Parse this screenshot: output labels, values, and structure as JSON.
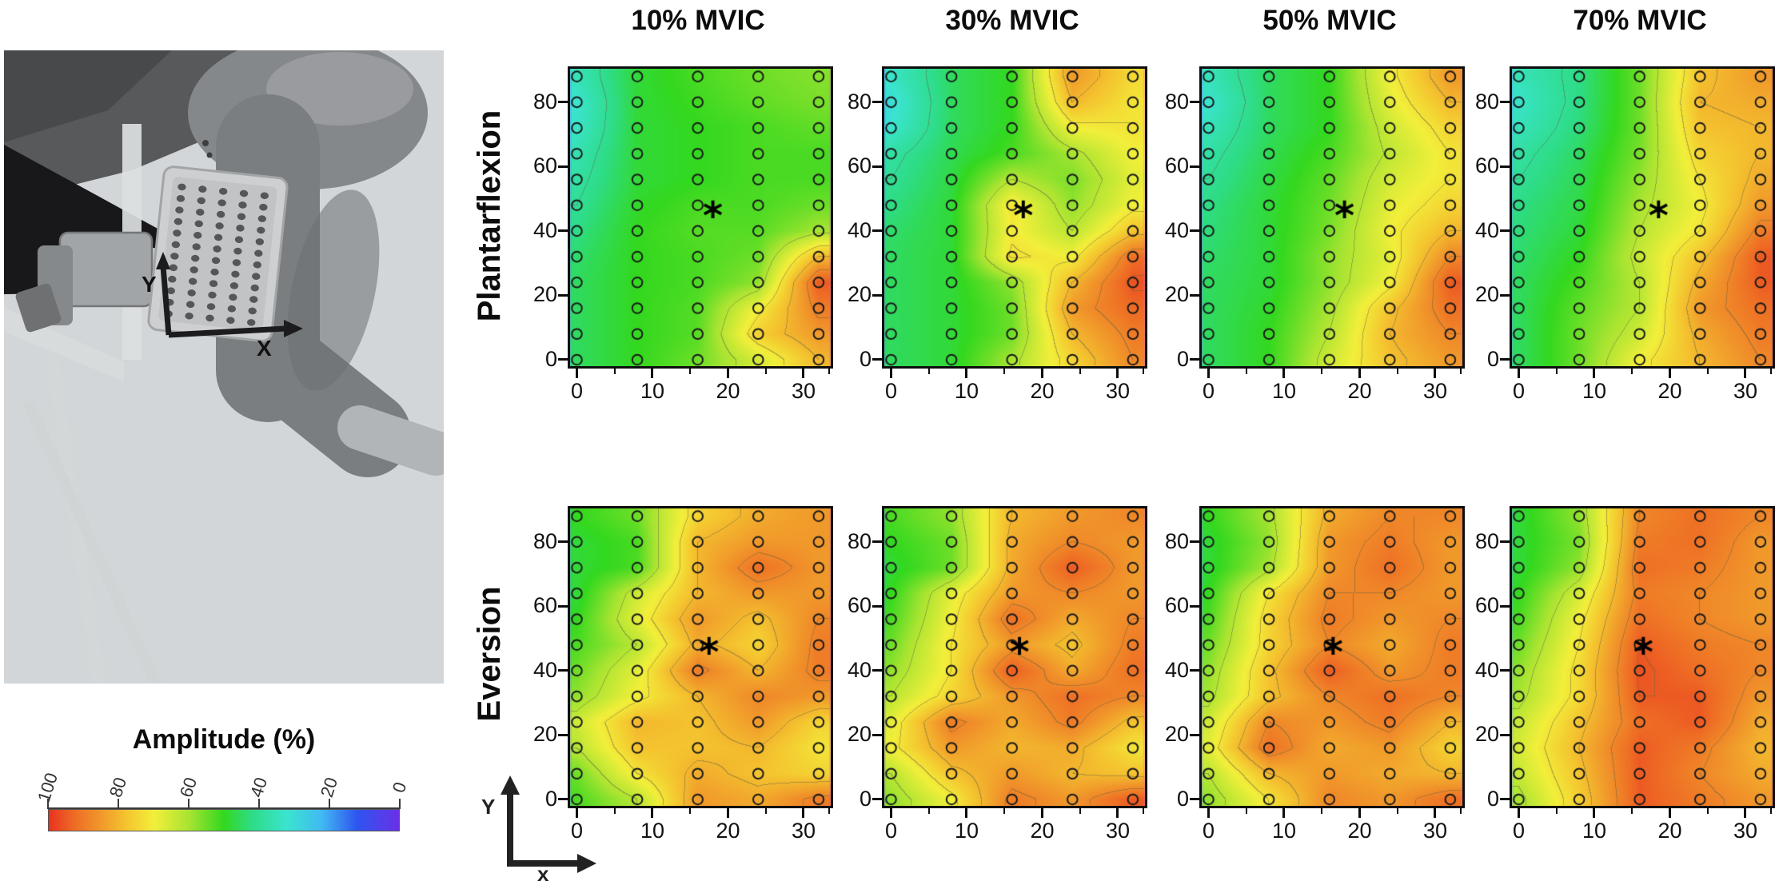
{
  "columns": [
    "10% MVIC",
    "30% MVIC",
    "50% MVIC",
    "70% MVIC"
  ],
  "rows": [
    "Plantarflexion",
    "Eversion"
  ],
  "photo": {
    "axis_y_label": "Y",
    "axis_x_label": "X"
  },
  "axis_icon": {
    "y_label": "Y",
    "x_label": "x"
  },
  "colorbar": {
    "title": "Amplitude (%)",
    "tick_labels": [
      "100",
      "80",
      "60",
      "40",
      "20",
      "0"
    ],
    "stops": [
      {
        "value": 0,
        "color": "#6a30e6"
      },
      {
        "value": 12,
        "color": "#2e55f0"
      },
      {
        "value": 22,
        "color": "#41b9f2"
      },
      {
        "value": 32,
        "color": "#3ae4cf"
      },
      {
        "value": 42,
        "color": "#2edc86"
      },
      {
        "value": 50,
        "color": "#33d81f"
      },
      {
        "value": 60,
        "color": "#a8e431"
      },
      {
        "value": 70,
        "color": "#f2ef3a"
      },
      {
        "value": 78,
        "color": "#f4c32f"
      },
      {
        "value": 86,
        "color": "#f0932a"
      },
      {
        "value": 93,
        "color": "#ee6a24"
      },
      {
        "value": 100,
        "color": "#e8321f"
      }
    ]
  },
  "chart_axes": {
    "xlim": [
      -0.9,
      33.6
    ],
    "ylim": [
      -2,
      90.4
    ],
    "xticks": [
      "0",
      "10",
      "20",
      "30"
    ],
    "xtick_values": [
      0,
      10,
      20,
      30
    ],
    "xminor_values": [
      5,
      15,
      25,
      33.4
    ],
    "yticks": [
      "0",
      "20",
      "40",
      "60",
      "80"
    ],
    "ytick_values": [
      0,
      20,
      40,
      60,
      80
    ],
    "grid_x": [
      0,
      8,
      16,
      24,
      32
    ],
    "grid_y": [
      88,
      80,
      72,
      64,
      56,
      48,
      40,
      32,
      24,
      16,
      8,
      0
    ],
    "contour_levels": [
      40,
      62,
      72,
      80,
      88,
      95
    ]
  },
  "chart_data": [
    {
      "type": "heatmap",
      "task": "Plantarflexion",
      "mvic": "10% MVIC",
      "marker": "*",
      "star": {
        "x": 18,
        "y": 45
      },
      "values": [
        [
          35,
          48,
          52,
          55,
          57
        ],
        [
          32,
          48,
          51,
          54,
          56
        ],
        [
          33,
          48,
          50,
          52,
          54
        ],
        [
          36,
          48,
          50,
          52,
          52
        ],
        [
          38,
          48,
          50,
          52,
          52
        ],
        [
          40,
          49,
          52,
          52,
          55
        ],
        [
          42,
          50,
          53,
          53,
          60
        ],
        [
          44,
          50,
          52,
          55,
          80
        ],
        [
          45,
          50,
          52,
          58,
          95
        ],
        [
          45,
          50,
          53,
          70,
          90
        ],
        [
          45,
          50,
          53,
          76,
          85
        ],
        [
          45,
          50,
          55,
          66,
          80
        ]
      ]
    },
    {
      "type": "heatmap",
      "task": "Plantarflexion",
      "mvic": "30% MVIC",
      "marker": "*",
      "star": {
        "x": 17.5,
        "y": 45
      },
      "values": [
        [
          33,
          45,
          50,
          85,
          74
        ],
        [
          30,
          45,
          50,
          80,
          72
        ],
        [
          32,
          45,
          50,
          70,
          72
        ],
        [
          38,
          46,
          52,
          60,
          70
        ],
        [
          40,
          47,
          62,
          56,
          68
        ],
        [
          42,
          48,
          72,
          58,
          70
        ],
        [
          44,
          48,
          71,
          62,
          78
        ],
        [
          45,
          48,
          73,
          70,
          92
        ],
        [
          45,
          48,
          58,
          80,
          96
        ],
        [
          45,
          48,
          55,
          85,
          93
        ],
        [
          45,
          48,
          55,
          80,
          90
        ],
        [
          45,
          48,
          60,
          75,
          88
        ]
      ]
    },
    {
      "type": "heatmap",
      "task": "Plantarflexion",
      "mvic": "50% MVIC",
      "marker": "*",
      "star": {
        "x": 18,
        "y": 45
      },
      "values": [
        [
          35,
          45,
          50,
          70,
          85
        ],
        [
          32,
          45,
          50,
          68,
          80
        ],
        [
          35,
          45,
          50,
          65,
          75
        ],
        [
          38,
          46,
          52,
          63,
          72
        ],
        [
          40,
          47,
          54,
          66,
          72
        ],
        [
          42,
          48,
          55,
          68,
          75
        ],
        [
          43,
          48,
          56,
          70,
          80
        ],
        [
          44,
          48,
          58,
          68,
          88
        ],
        [
          45,
          48,
          58,
          70,
          95
        ],
        [
          45,
          49,
          60,
          78,
          92
        ],
        [
          45,
          50,
          62,
          80,
          88
        ],
        [
          45,
          50,
          65,
          78,
          85
        ]
      ]
    },
    {
      "type": "heatmap",
      "task": "Plantarflexion",
      "mvic": "70% MVIC",
      "marker": "*",
      "star": {
        "x": 18.5,
        "y": 45
      },
      "values": [
        [
          35,
          42,
          55,
          78,
          85
        ],
        [
          33,
          42,
          55,
          80,
          82
        ],
        [
          35,
          43,
          55,
          78,
          80
        ],
        [
          38,
          45,
          56,
          75,
          80
        ],
        [
          40,
          46,
          58,
          72,
          82
        ],
        [
          42,
          47,
          60,
          70,
          85
        ],
        [
          43,
          48,
          62,
          72,
          90
        ],
        [
          44,
          50,
          64,
          78,
          95
        ],
        [
          45,
          52,
          62,
          82,
          95
        ],
        [
          45,
          54,
          62,
          85,
          92
        ],
        [
          45,
          55,
          65,
          82,
          90
        ],
        [
          45,
          55,
          70,
          80,
          88
        ]
      ]
    },
    {
      "type": "heatmap",
      "task": "Eversion",
      "mvic": "10% MVIC",
      "marker": "*",
      "star": {
        "x": 17.5,
        "y": 46
      },
      "values": [
        [
          50,
          55,
          75,
          82,
          85
        ],
        [
          48,
          52,
          80,
          85,
          85
        ],
        [
          48,
          52,
          80,
          92,
          85
        ],
        [
          48,
          65,
          80,
          85,
          85
        ],
        [
          50,
          68,
          85,
          78,
          88
        ],
        [
          52,
          62,
          82,
          75,
          90
        ],
        [
          55,
          68,
          90,
          80,
          90
        ],
        [
          58,
          70,
          80,
          88,
          85
        ],
        [
          65,
          80,
          78,
          85,
          75
        ],
        [
          62,
          78,
          78,
          80,
          72
        ],
        [
          55,
          72,
          82,
          78,
          75
        ],
        [
          52,
          62,
          85,
          82,
          90
        ]
      ]
    },
    {
      "type": "heatmap",
      "task": "Eversion",
      "mvic": "30% MVIC",
      "marker": "*",
      "star": {
        "x": 17,
        "y": 46
      },
      "values": [
        [
          52,
          58,
          80,
          85,
          88
        ],
        [
          50,
          55,
          82,
          88,
          85
        ],
        [
          48,
          55,
          82,
          95,
          85
        ],
        [
          50,
          68,
          85,
          88,
          85
        ],
        [
          52,
          70,
          92,
          82,
          88
        ],
        [
          55,
          72,
          85,
          78,
          90
        ],
        [
          58,
          72,
          95,
          82,
          92
        ],
        [
          62,
          75,
          85,
          92,
          88
        ],
        [
          68,
          90,
          82,
          90,
          78
        ],
        [
          70,
          85,
          80,
          82,
          72
        ],
        [
          62,
          78,
          85,
          80,
          78
        ],
        [
          58,
          70,
          90,
          85,
          95
        ]
      ]
    },
    {
      "type": "heatmap",
      "task": "Eversion",
      "mvic": "50% MVIC",
      "marker": "*",
      "star": {
        "x": 16.5,
        "y": 46
      },
      "values": [
        [
          50,
          60,
          82,
          88,
          88
        ],
        [
          48,
          58,
          85,
          90,
          85
        ],
        [
          48,
          60,
          85,
          92,
          85
        ],
        [
          50,
          72,
          88,
          88,
          85
        ],
        [
          52,
          75,
          90,
          85,
          88
        ],
        [
          55,
          75,
          88,
          82,
          90
        ],
        [
          58,
          78,
          95,
          85,
          90
        ],
        [
          60,
          78,
          88,
          92,
          88
        ],
        [
          65,
          88,
          85,
          90,
          80
        ],
        [
          68,
          92,
          82,
          85,
          75
        ],
        [
          62,
          80,
          85,
          82,
          80
        ],
        [
          58,
          72,
          88,
          85,
          92
        ]
      ]
    },
    {
      "type": "heatmap",
      "task": "Eversion",
      "mvic": "70% MVIC",
      "marker": "*",
      "star": {
        "x": 16.5,
        "y": 46
      },
      "values": [
        [
          48,
          58,
          88,
          92,
          88
        ],
        [
          48,
          56,
          90,
          92,
          85
        ],
        [
          48,
          58,
          92,
          90,
          85
        ],
        [
          50,
          66,
          90,
          88,
          85
        ],
        [
          52,
          70,
          92,
          88,
          85
        ],
        [
          55,
          72,
          95,
          90,
          88
        ],
        [
          58,
          74,
          96,
          92,
          88
        ],
        [
          60,
          74,
          95,
          95,
          85
        ],
        [
          64,
          78,
          92,
          95,
          82
        ],
        [
          66,
          80,
          95,
          90,
          80
        ],
        [
          64,
          78,
          95,
          88,
          82
        ],
        [
          60,
          76,
          95,
          90,
          85
        ]
      ]
    }
  ]
}
